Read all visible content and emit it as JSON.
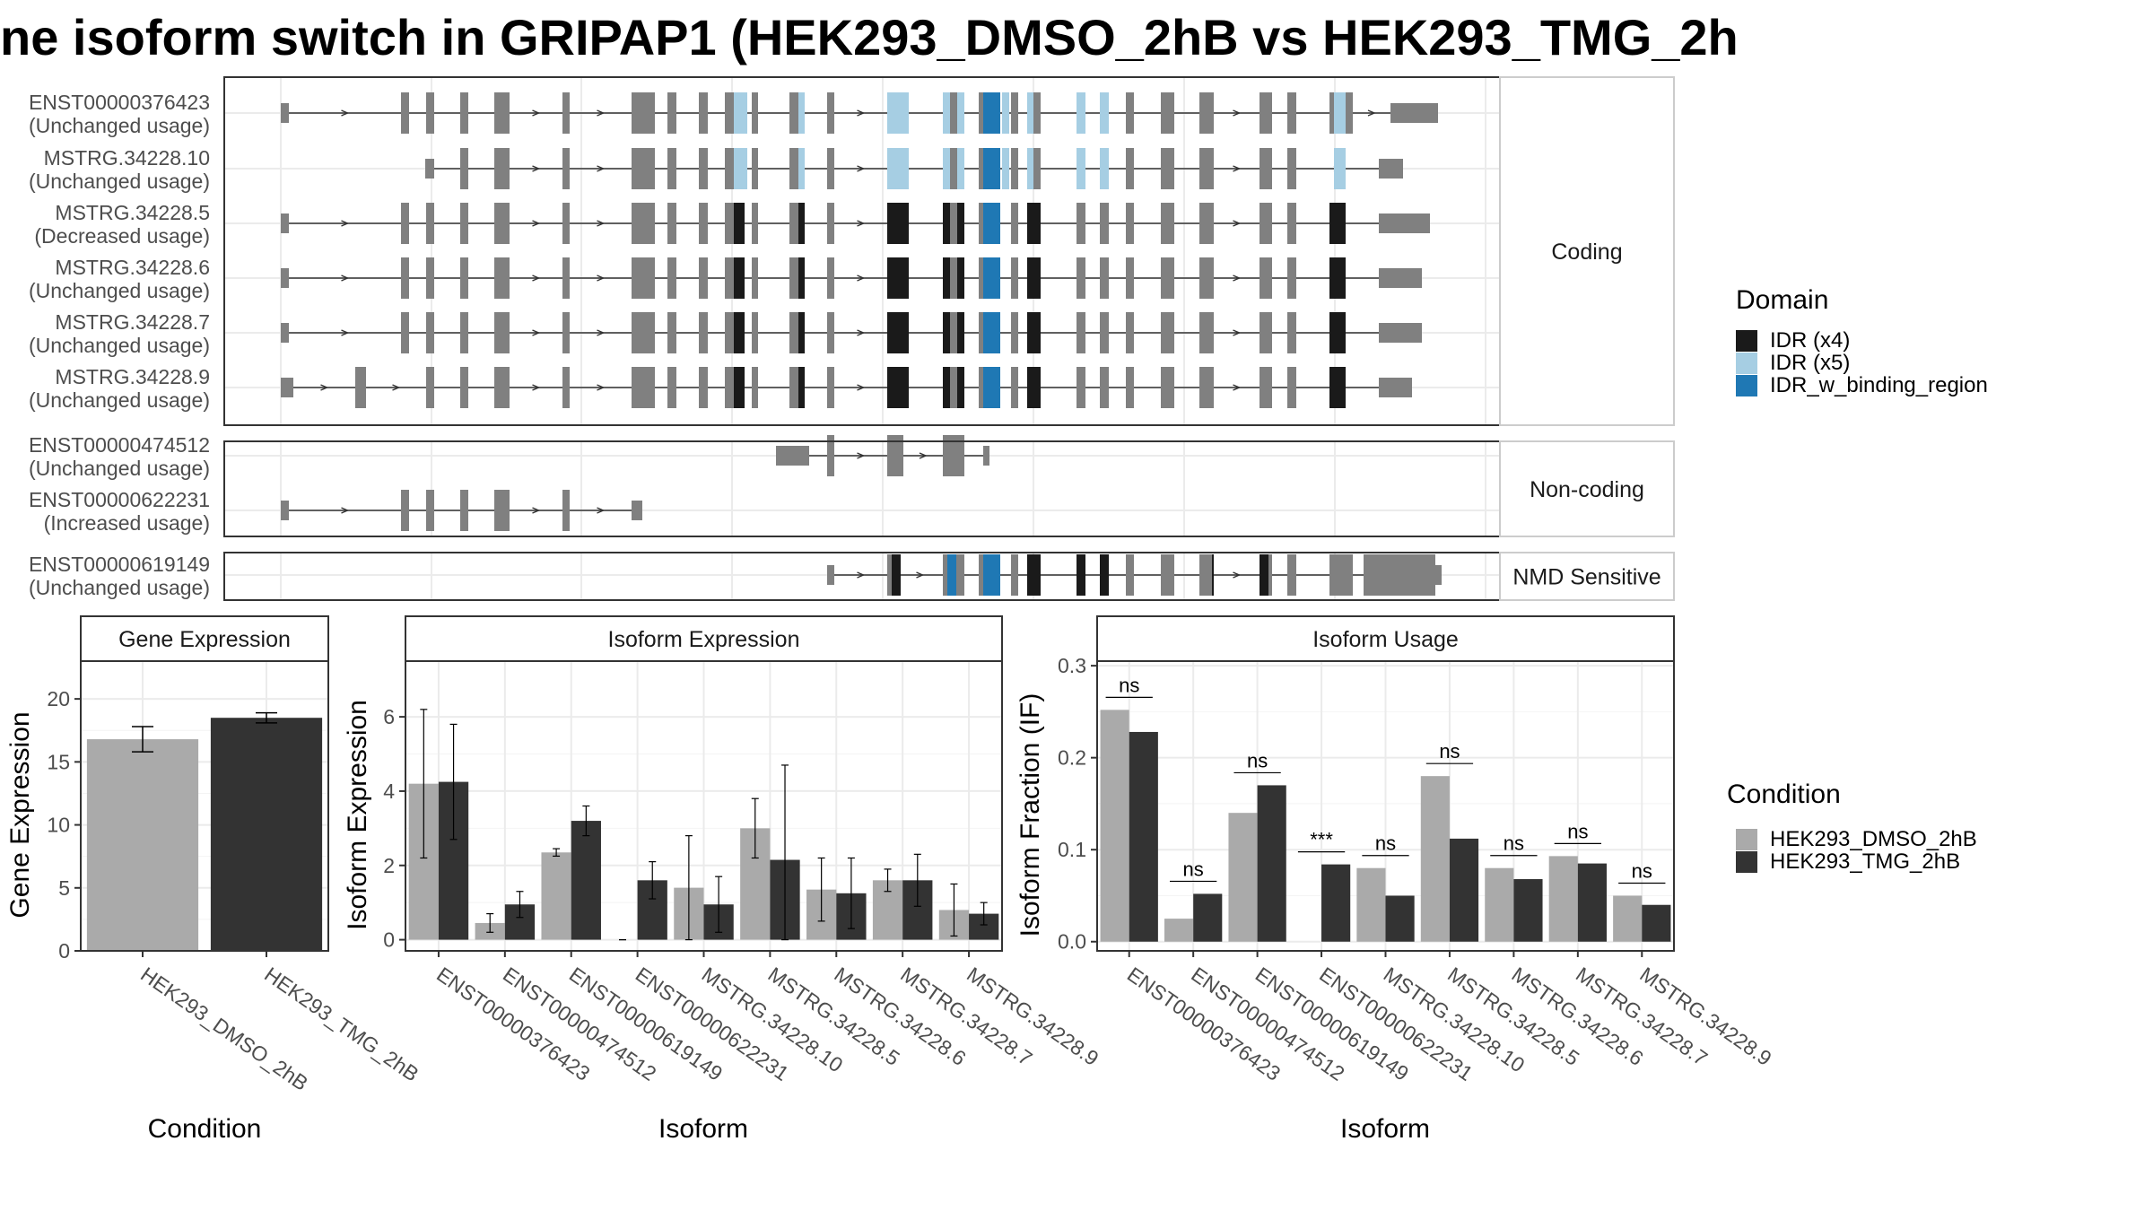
{
  "title": "ne isoform switch in GRIPAP1 (HEK293_DMSO_2hB vs HEK293_TMG_2h",
  "colors": {
    "exon": "#808080",
    "idr_x4": "#1a1a1a",
    "idr_x5": "#a6cee3",
    "idr_binding": "#1f78b4",
    "dmso": "#aaaaaa",
    "tmg": "#333333",
    "grid": "#ebebeb"
  },
  "domain_legend": {
    "title": "Domain",
    "items": [
      {
        "label": "IDR (x4)",
        "color": "#1a1a1a"
      },
      {
        "label": "IDR (x5)",
        "color": "#a6cee3"
      },
      {
        "label": "IDR_w_binding_region",
        "color": "#1f78b4"
      }
    ]
  },
  "condition_legend": {
    "title": "Condition",
    "items": [
      {
        "label": "HEK293_DMSO_2hB",
        "color": "#aaaaaa"
      },
      {
        "label": "HEK293_TMG_2hB",
        "color": "#333333"
      }
    ]
  },
  "structure": {
    "panels": [
      {
        "label": "Coding",
        "isoforms": [
          {
            "name": "ENST00000376423",
            "usage": "(Unchanged usage)"
          },
          {
            "name": "MSTRG.34228.10",
            "usage": "(Unchanged usage)"
          },
          {
            "name": "MSTRG.34228.5",
            "usage": "(Decreased usage)"
          },
          {
            "name": "MSTRG.34228.6",
            "usage": "(Unchanged usage)"
          },
          {
            "name": "MSTRG.34228.7",
            "usage": "(Unchanged usage)"
          },
          {
            "name": "MSTRG.34228.9",
            "usage": "(Unchanged usage)"
          }
        ]
      },
      {
        "label": "Non-coding",
        "isoforms": [
          {
            "name": "ENST00000474512",
            "usage": "(Unchanged usage)"
          },
          {
            "name": "ENST00000622231",
            "usage": "(Increased usage)"
          }
        ]
      },
      {
        "label": "NMD Sensitive",
        "isoforms": [
          {
            "name": "ENST00000619149",
            "usage": "(Unchanged usage)"
          }
        ]
      }
    ]
  },
  "chart_data": [
    {
      "type": "bar",
      "title": "Gene Expression",
      "xlabel": "Condition",
      "ylabel": "Gene Expression",
      "ylim": [
        0,
        23
      ],
      "yticks": [
        0,
        5,
        10,
        15,
        20
      ],
      "categories": [
        "HEK293_DMSO_2hB",
        "HEK293_TMG_2hB"
      ],
      "values": [
        16.8,
        18.5
      ],
      "errors": [
        [
          15.8,
          17.8
        ],
        [
          18.1,
          18.9
        ]
      ]
    },
    {
      "type": "bar",
      "title": "Isoform Expression",
      "xlabel": "Isoform",
      "ylabel": "Isoform Expression",
      "ylim": [
        -0.3,
        7.5
      ],
      "yticks": [
        0,
        2,
        4,
        6
      ],
      "categories": [
        "ENST00000376423",
        "ENST00000474512",
        "ENST00000619149",
        "ENST00000622231",
        "MSTRG.34228.10",
        "MSTRG.34228.5",
        "MSTRG.34228.6",
        "MSTRG.34228.7",
        "MSTRG.34228.9"
      ],
      "series": [
        {
          "name": "HEK293_DMSO_2hB",
          "values": [
            4.2,
            0.45,
            2.35,
            0.0,
            1.4,
            3.0,
            1.35,
            1.6,
            0.8
          ],
          "errors": [
            [
              2.2,
              6.2
            ],
            [
              0.2,
              0.7
            ],
            [
              2.25,
              2.45
            ],
            [
              0.0,
              0.0
            ],
            [
              0.0,
              2.8
            ],
            [
              2.2,
              3.8
            ],
            [
              0.5,
              2.2
            ],
            [
              1.3,
              1.9
            ],
            [
              0.1,
              1.5
            ]
          ]
        },
        {
          "name": "HEK293_TMG_2hB",
          "values": [
            4.25,
            0.95,
            3.2,
            1.6,
            0.95,
            2.15,
            1.25,
            1.6,
            0.7
          ],
          "errors": [
            [
              2.7,
              5.8
            ],
            [
              0.6,
              1.3
            ],
            [
              2.8,
              3.6
            ],
            [
              1.1,
              2.1
            ],
            [
              0.2,
              1.7
            ],
            [
              0.0,
              4.7
            ],
            [
              0.3,
              2.2
            ],
            [
              0.9,
              2.3
            ],
            [
              0.4,
              1.0
            ]
          ]
        }
      ]
    },
    {
      "type": "bar",
      "title": "Isoform Usage",
      "xlabel": "Isoform",
      "ylabel": "Isoform Fraction (IF)",
      "ylim": [
        -0.01,
        0.305
      ],
      "yticks": [
        0.0,
        0.1,
        0.2,
        0.3
      ],
      "yticklabels": [
        "0.0",
        "0.1",
        "0.2",
        "0.3"
      ],
      "categories": [
        "ENST00000376423",
        "ENST00000474512",
        "ENST00000619149",
        "ENST00000622231",
        "MSTRG.34228.10",
        "MSTRG.34228.5",
        "MSTRG.34228.6",
        "MSTRG.34228.7",
        "MSTRG.34228.9"
      ],
      "series": [
        {
          "name": "HEK293_DMSO_2hB",
          "values": [
            0.252,
            0.025,
            0.14,
            0.0,
            0.08,
            0.18,
            0.08,
            0.093,
            0.05
          ]
        },
        {
          "name": "HEK293_TMG_2hB",
          "values": [
            0.228,
            0.052,
            0.17,
            0.084,
            0.05,
            0.112,
            0.068,
            0.085,
            0.04
          ]
        }
      ],
      "annotations": [
        "ns",
        "ns",
        "ns",
        "***",
        "ns",
        "ns",
        "ns",
        "ns",
        "ns"
      ]
    }
  ]
}
